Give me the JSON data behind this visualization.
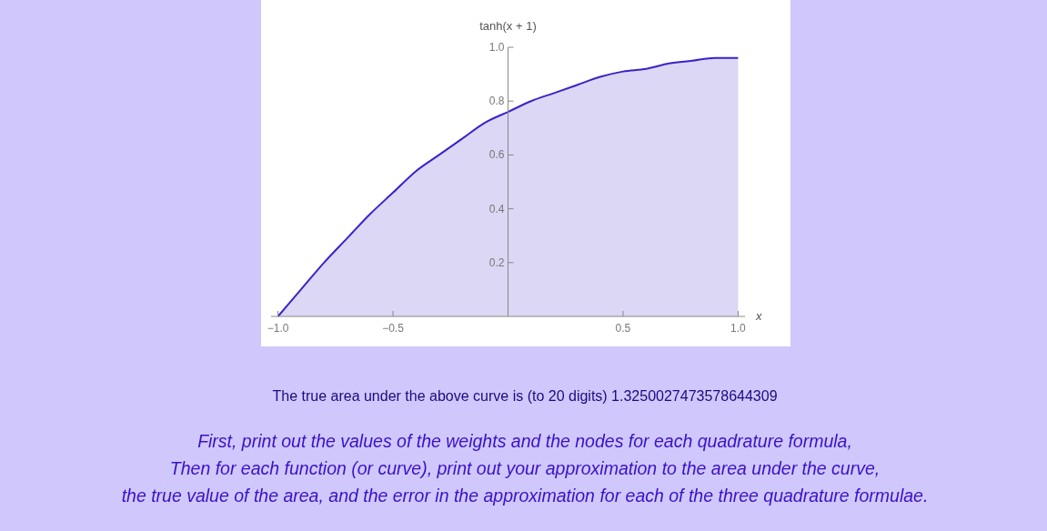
{
  "chart_data": {
    "type": "area",
    "xlabel": "x",
    "ylabel": "tanh(x + 1)",
    "x": [
      -1,
      -0.9,
      -0.8,
      -0.7,
      -0.6,
      -0.5,
      -0.4,
      -0.3,
      -0.2,
      -0.1,
      0,
      0.1,
      0.2,
      0.3,
      0.4,
      0.5,
      0.6,
      0.7,
      0.8,
      0.9,
      1
    ],
    "series": [
      {
        "color": "#3a22c8",
        "values": [
          0,
          0.1,
          0.2,
          0.29,
          0.38,
          0.46,
          0.54,
          0.6,
          0.66,
          0.72,
          0.76,
          0.8,
          0.83,
          0.86,
          0.89,
          0.91,
          0.92,
          0.94,
          0.95,
          0.96,
          0.96
        ]
      }
    ],
    "xlim": [
      -1.03,
      1.03
    ],
    "ylim": [
      0,
      1
    ],
    "xticks": [
      {
        "value": -1,
        "label": "−1.0"
      },
      {
        "value": -0.5,
        "label": "−0.5"
      },
      {
        "value": 0.5,
        "label": "0.5"
      },
      {
        "value": 1,
        "label": "1.0"
      }
    ],
    "yticks": [
      0.2,
      0.4,
      0.6,
      0.8,
      {
        "value": 1,
        "label": "1.0"
      }
    ],
    "annotations": [
      "The true area under the above curve is (to 20 digits)  1.3250027473578644309",
      "First, print out the values of the weights and the nodes for each quadrature formula,",
      "Then for each function (or curve), print out your approximation to the area under the curve,",
      "the true value of the area, and the error in the approximation for each of the three quadrature formulae."
    ]
  }
}
